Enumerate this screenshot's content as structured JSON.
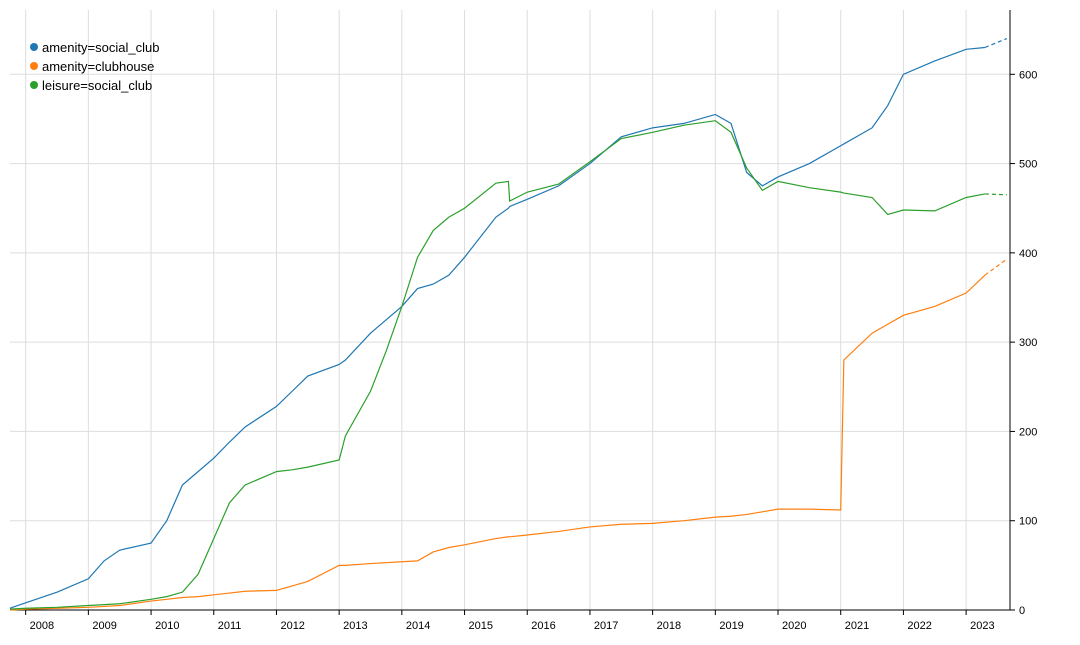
{
  "chart_data": {
    "type": "line",
    "x": [
      2007.75,
      2008,
      2008.5,
      2009,
      2009.25,
      2009.5,
      2010,
      2010.25,
      2010.5,
      2010.75,
      2011,
      2011.25,
      2011.5,
      2012,
      2012.25,
      2012.5,
      2013,
      2013.1,
      2013.5,
      2013.75,
      2014,
      2014.25,
      2014.5,
      2014.75,
      2015,
      2015.5,
      2015.7,
      2015.72,
      2016,
      2016.5,
      2017,
      2017.5,
      2018,
      2018.5,
      2019,
      2019.25,
      2019.5,
      2019.75,
      2020,
      2020.5,
      2021,
      2021.05,
      2021.5,
      2021.75,
      2022,
      2022.5,
      2023,
      2023.3,
      2023.65
    ],
    "series": [
      {
        "name": "amenity=social_club",
        "color": "#1f77b4",
        "values": [
          2,
          8,
          20,
          35,
          55,
          67,
          75,
          100,
          140,
          155,
          170,
          188,
          205,
          228,
          245,
          262,
          275,
          280,
          310,
          325,
          340,
          360,
          365,
          375,
          395,
          440,
          450,
          452,
          460,
          475,
          500,
          530,
          540,
          545,
          555,
          545,
          490,
          475,
          485,
          500,
          520,
          522,
          540,
          565,
          600,
          615,
          628,
          630,
          640
        ]
      },
      {
        "name": "amenity=clubhouse",
        "color": "#ff7f0e",
        "values": [
          0,
          1,
          2,
          3,
          4,
          5,
          10,
          12,
          14,
          15,
          17,
          19,
          21,
          22,
          27,
          32,
          50,
          50,
          52,
          53,
          54,
          55,
          65,
          70,
          73,
          80,
          82,
          82,
          84,
          88,
          93,
          96,
          97,
          100,
          104,
          105,
          107,
          110,
          113,
          113,
          112,
          280,
          310,
          320,
          330,
          340,
          355,
          375,
          393
        ]
      },
      {
        "name": "leisure=social_club",
        "color": "#2ca02c",
        "values": [
          1,
          2,
          3,
          5,
          6,
          7,
          12,
          15,
          20,
          40,
          80,
          120,
          140,
          155,
          157,
          160,
          168,
          195,
          245,
          290,
          340,
          395,
          425,
          440,
          450,
          478,
          480,
          458,
          468,
          477,
          502,
          528,
          535,
          543,
          548,
          535,
          495,
          470,
          480,
          473,
          468,
          467,
          462,
          443,
          448,
          447,
          462,
          466,
          465
        ]
      }
    ],
    "xlim": [
      2007.75,
      2023.7
    ],
    "xticks": [
      2008,
      2009,
      2010,
      2011,
      2012,
      2013,
      2014,
      2015,
      2016,
      2017,
      2018,
      2019,
      2020,
      2021,
      2022,
      2023
    ],
    "ylim": [
      0,
      672
    ],
    "yticks": [
      0,
      100,
      200,
      300,
      400,
      500,
      600
    ],
    "grid": true,
    "legend": "top-left"
  }
}
